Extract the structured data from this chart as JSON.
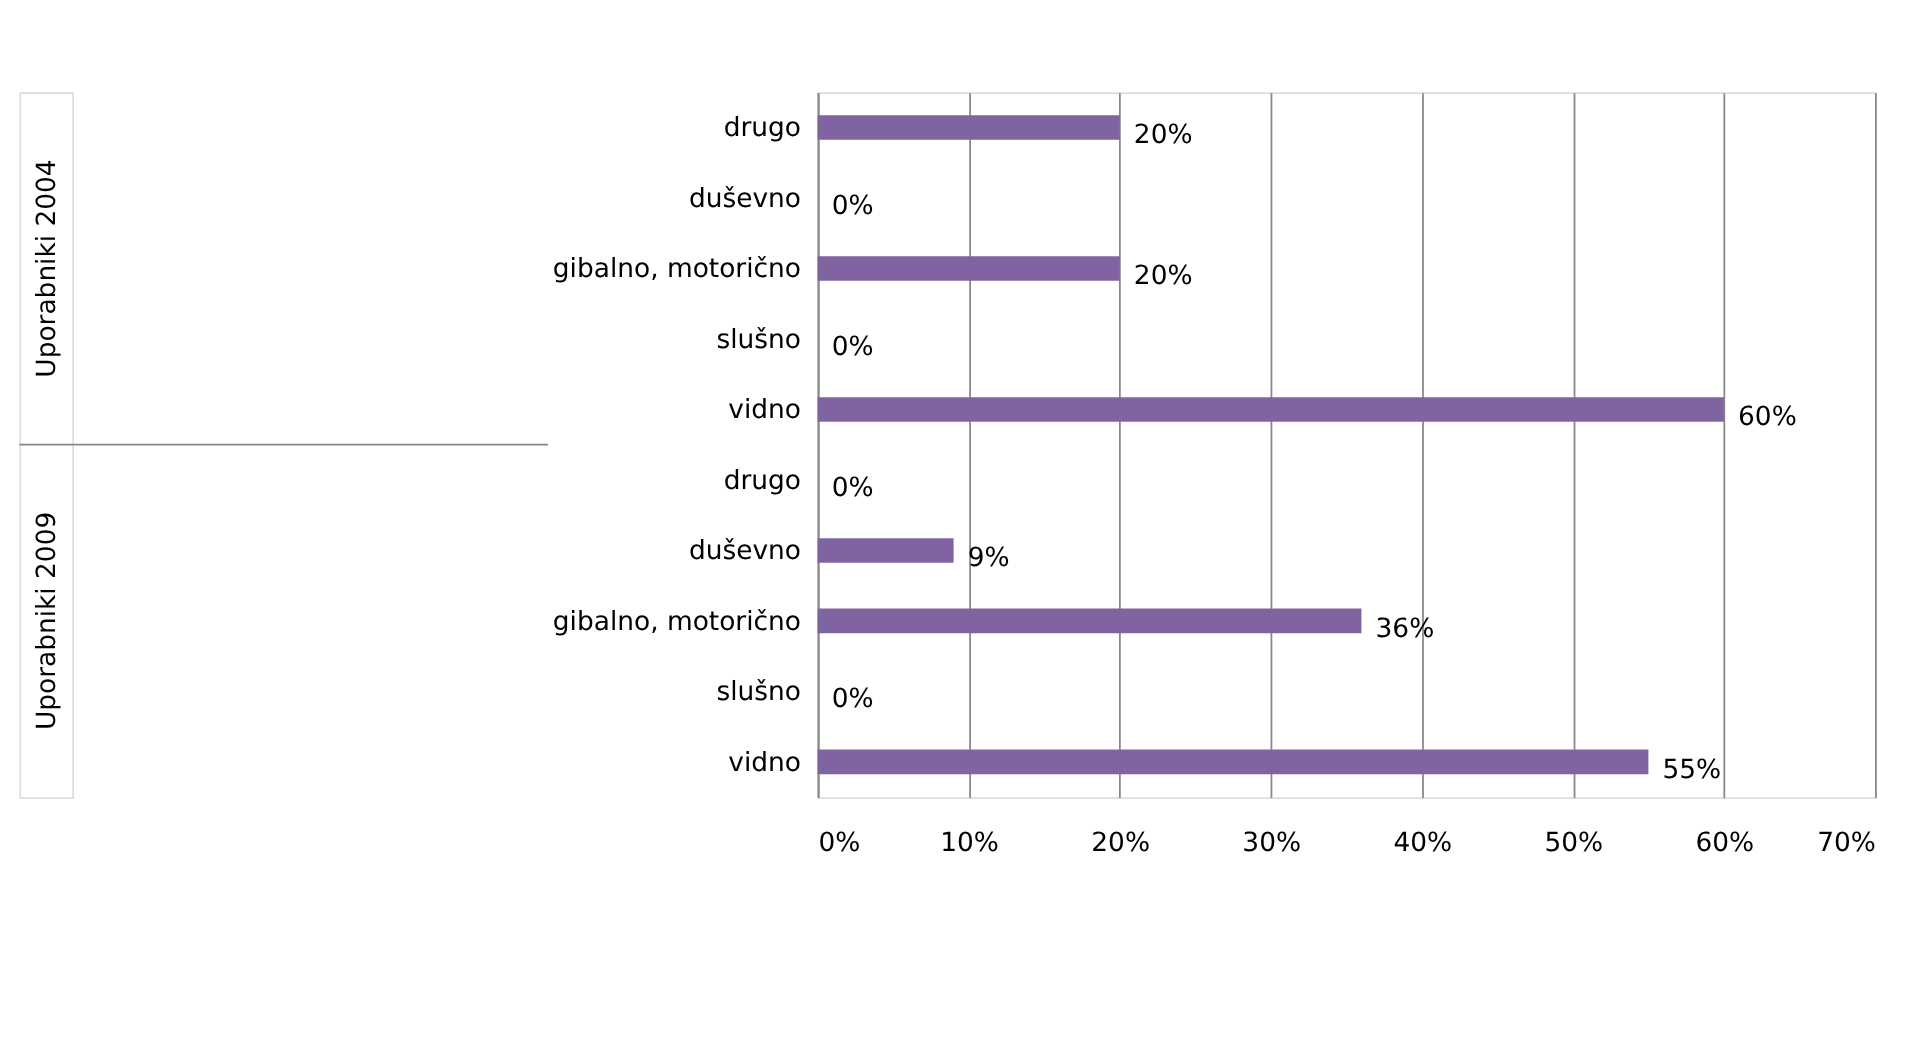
{
  "chart_data": {
    "type": "bar",
    "orientation": "horizontal",
    "categories": [
      "drugo",
      "duševno",
      "gibalno, motorično",
      "slušno",
      "vidno",
      "drugo",
      "duševno",
      "gibalno, motorično",
      "slušno",
      "vidno"
    ],
    "values": [
      20,
      0,
      20,
      0,
      60,
      0,
      9,
      36,
      0,
      55
    ],
    "color": "#8064a2",
    "xlim": [
      0,
      70
    ],
    "xticks": [
      {
        "value": 0,
        "label": "0%"
      },
      {
        "value": 10,
        "label": "10%"
      },
      {
        "value": 20,
        "label": "20%"
      },
      {
        "value": 30,
        "label": "30%"
      },
      {
        "value": 40,
        "label": "40%"
      },
      {
        "value": 50,
        "label": "50%"
      },
      {
        "value": 60,
        "label": "60%"
      },
      {
        "value": 70,
        "label": "70%"
      }
    ],
    "value_labels": [
      "20%",
      "0%",
      "20%",
      "0%",
      "60%",
      "0%",
      "9%",
      "36%",
      "0%",
      "55%"
    ],
    "annotations": [
      "Uporabniki 2004",
      "Uporabniki 2009"
    ],
    "grid": "x"
  }
}
